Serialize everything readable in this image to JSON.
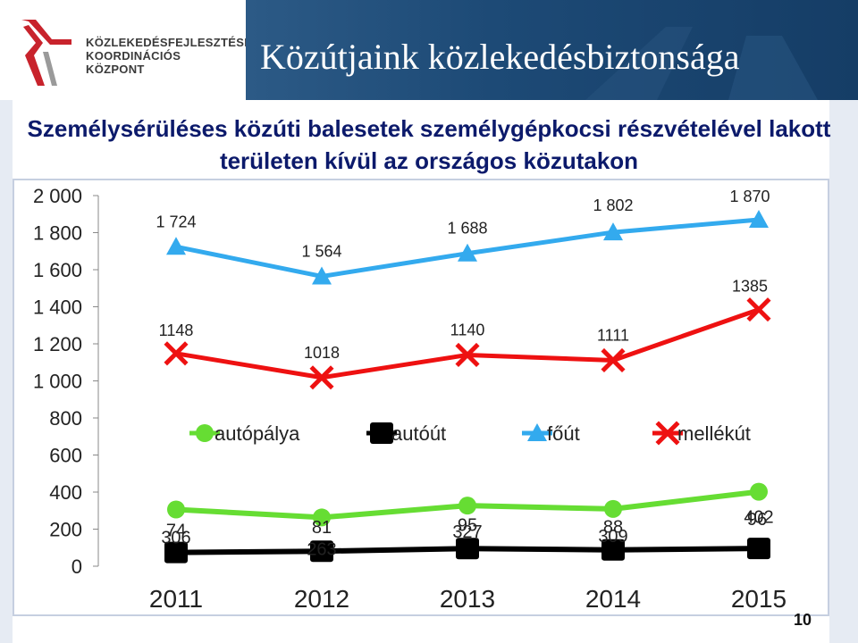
{
  "header": {
    "logo_lines": [
      "KÖZLEKEDÉSFEJLESZTÉSI",
      "KOORDINÁCIÓS",
      "KÖZPONT"
    ],
    "title": "Közútjaink közlekedésbiztonsága"
  },
  "page_number": "10",
  "colors": {
    "title_blue": "#0c1a6b",
    "banner": "#1d4a76",
    "logo_red": "#c8232c",
    "series": [
      "#66dd33",
      "#000000",
      "#33aaee",
      "#ee1111"
    ]
  },
  "chart_data": {
    "type": "line",
    "title": "Személysérüléses közúti balesetek személygépkocsi részvételével lakott területen kívül az országos közutakon",
    "categories": [
      "2011",
      "2012",
      "2013",
      "2014",
      "2015"
    ],
    "ylim": [
      0,
      2000
    ],
    "yticks": [
      0,
      200,
      400,
      600,
      800,
      1000,
      1200,
      1400,
      1600,
      1800,
      2000
    ],
    "ytick_labels": [
      "0",
      "200",
      "400",
      "600",
      "800",
      "1 000",
      "1 200",
      "1 400",
      "1 600",
      "1 800",
      "2 000"
    ],
    "legend_position": "middle",
    "series": [
      {
        "name": "autópálya",
        "values": [
          306,
          263,
          327,
          309,
          402
        ],
        "labels": [
          "306",
          "263",
          "327",
          "309",
          "402"
        ],
        "marker": "circle"
      },
      {
        "name": "autóút",
        "values": [
          74,
          81,
          95,
          88,
          96
        ],
        "labels": [
          "74",
          "81",
          "95",
          "88",
          "96"
        ],
        "marker": "square"
      },
      {
        "name": "főút",
        "values": [
          1724,
          1564,
          1688,
          1802,
          1870
        ],
        "labels": [
          "1 724",
          "1 564",
          "1 688",
          "1 802",
          "1 870"
        ],
        "marker": "triangle"
      },
      {
        "name": "mellékút",
        "values": [
          1148,
          1018,
          1140,
          1111,
          1385
        ],
        "labels": [
          "1148",
          "1018",
          "1140",
          "1111",
          "1385"
        ],
        "marker": "x"
      }
    ]
  }
}
